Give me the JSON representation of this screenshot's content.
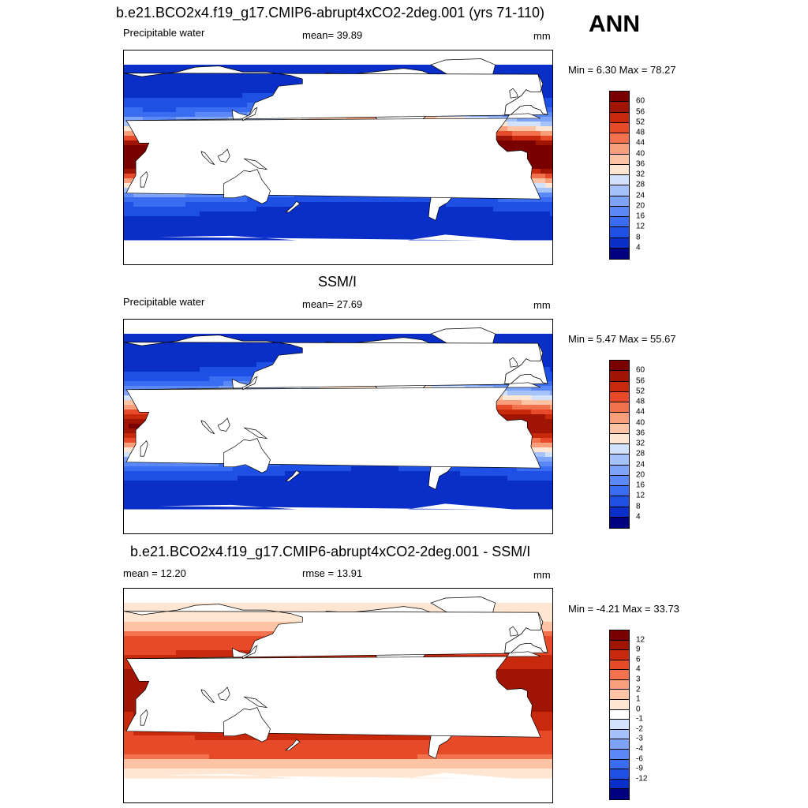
{
  "season": "ANN",
  "colors": {
    "abs": [
      "#000080",
      "#0a2fc8",
      "#1f50e6",
      "#3a6cf2",
      "#5a88f7",
      "#7ea4f9",
      "#a6c2fb",
      "#d2e1fc",
      "#ffe6d2",
      "#fcc4a4",
      "#f89e7a",
      "#f2724e",
      "#e64a28",
      "#c8280c",
      "#a01404",
      "#7a0000"
    ],
    "diff": [
      "#000080",
      "#0a2fc8",
      "#1f50e6",
      "#3a6cf2",
      "#5a88f7",
      "#7ea4f9",
      "#a6c2fb",
      "#d2e1fc",
      "#ffffff",
      "#ffe6d2",
      "#fcc4a4",
      "#f89e7a",
      "#f2724e",
      "#e64a28",
      "#c8280c",
      "#a01404",
      "#7a0000"
    ]
  },
  "panels": [
    {
      "title": "b.e21.BCO2x4.f19_g17.CMIP6-abrupt4xCO2-2deg.001 (yrs 71-110)",
      "left_label": "Precipitable water",
      "center_label": "mean=  39.89",
      "unit": "mm",
      "minmax": "Min =   6.30 Max =  78.27",
      "levels": [
        "60",
        "56",
        "52",
        "48",
        "44",
        "40",
        "36",
        "32",
        "28",
        "24",
        "20",
        "16",
        "12",
        "8",
        "4"
      ],
      "field": "model"
    },
    {
      "title": "SSM/I",
      "left_label": "Precipitable water",
      "center_label": "mean=  27.69",
      "unit": "mm",
      "minmax": "Min =   5.47 Max =  55.67",
      "levels": [
        "60",
        "56",
        "52",
        "48",
        "44",
        "40",
        "36",
        "32",
        "28",
        "24",
        "20",
        "16",
        "12",
        "8",
        "4"
      ],
      "field": "obs"
    },
    {
      "title": "b.e21.BCO2x4.f19_g17.CMIP6-abrupt4xCO2-2deg.001 - SSM/I",
      "left_label": "mean =  12.20",
      "center_label": "rmse =  13.91",
      "unit": "mm",
      "minmax": "Min =  -4.21 Max =  33.73",
      "levels": [
        "12",
        "9",
        "6",
        "4",
        "3",
        "2",
        "1",
        "0",
        "-1",
        "-2",
        "-3",
        "-4",
        "-6",
        "-9",
        "-12"
      ],
      "field": "diff"
    }
  ]
}
